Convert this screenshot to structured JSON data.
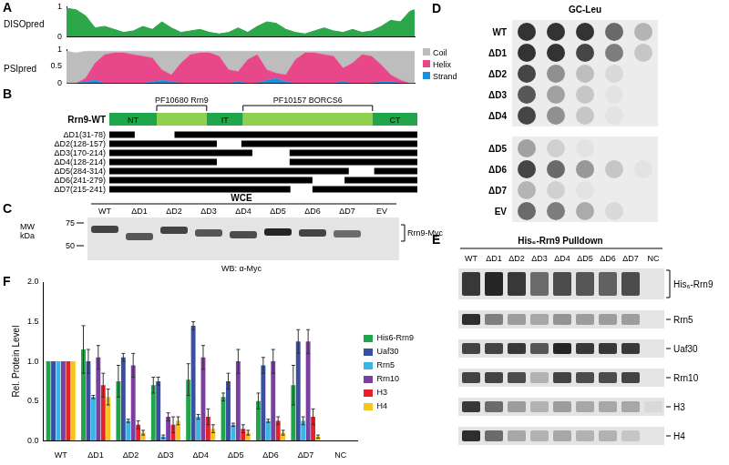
{
  "chart_data": [
    {
      "panel": "A",
      "type": "area",
      "y_label": "DISOpred",
      "x": [
        0,
        10,
        20,
        30,
        40,
        50,
        60,
        70,
        80,
        90,
        100,
        110,
        120,
        130,
        140,
        150,
        160,
        170,
        180,
        190,
        200,
        210,
        220,
        230,
        240,
        250,
        260,
        270,
        280,
        290,
        300,
        310,
        320,
        330,
        340,
        350,
        360,
        365
      ],
      "values": [
        0.95,
        0.9,
        0.7,
        0.3,
        0.35,
        0.25,
        0.15,
        0.2,
        0.35,
        0.25,
        0.5,
        0.3,
        0.15,
        0.2,
        0.25,
        0.15,
        0.1,
        0.15,
        0.3,
        0.15,
        0.35,
        0.5,
        0.45,
        0.25,
        0.15,
        0.1,
        0.2,
        0.3,
        0.2,
        0.15,
        0.25,
        0.15,
        0.2,
        0.35,
        0.55,
        0.5,
        0.85,
        0.9
      ],
      "color": "#2ca84a",
      "xlim": [
        0,
        365
      ],
      "ylim": [
        0,
        1
      ],
      "yticks": [
        0,
        1
      ],
      "tick_labels": "y",
      "grid": false
    },
    {
      "panel": "A",
      "type": "area",
      "y_label": "PSIpred",
      "stacked": true,
      "x": [
        0,
        10,
        20,
        30,
        40,
        50,
        60,
        70,
        80,
        90,
        100,
        110,
        120,
        130,
        140,
        150,
        160,
        170,
        180,
        190,
        200,
        210,
        220,
        230,
        240,
        250,
        260,
        270,
        280,
        290,
        300,
        310,
        320,
        330,
        340,
        350,
        360,
        365
      ],
      "series": [
        {
          "name": "Coil",
          "color": "#bdbdbd",
          "values": [
            0.95,
            0.9,
            0.8,
            0.35,
            0.1,
            0.05,
            0.05,
            0.1,
            0.15,
            0.2,
            0.55,
            0.7,
            0.35,
            0.1,
            0.05,
            0.05,
            0.15,
            0.55,
            0.6,
            0.25,
            0.1,
            0.55,
            0.65,
            0.7,
            0.25,
            0.05,
            0.05,
            0.1,
            0.15,
            0.5,
            0.35,
            0.1,
            0.15,
            0.4,
            0.7,
            0.85,
            0.95,
            0.95
          ]
        },
        {
          "name": "Helix",
          "color": "#e8478a",
          "values": [
            0,
            0,
            0.1,
            0.5,
            0.85,
            0.9,
            0.9,
            0.85,
            0.8,
            0.7,
            0.3,
            0.2,
            0.6,
            0.85,
            0.9,
            0.9,
            0.8,
            0.4,
            0.3,
            0.7,
            0.85,
            0.3,
            0.15,
            0.2,
            0.7,
            0.9,
            0.9,
            0.85,
            0.8,
            0.4,
            0.6,
            0.85,
            0.8,
            0.5,
            0.2,
            0.1,
            0,
            0
          ]
        },
        {
          "name": "Strand",
          "color": "#1e90d8",
          "values": [
            0,
            0,
            0.05,
            0.1,
            0,
            0,
            0,
            0,
            0,
            0.05,
            0.1,
            0.05,
            0,
            0,
            0,
            0,
            0,
            0,
            0.05,
            0,
            0,
            0.1,
            0.15,
            0.05,
            0,
            0,
            0,
            0,
            0,
            0.05,
            0,
            0,
            0,
            0.05,
            0.05,
            0,
            0,
            0
          ]
        }
      ],
      "xlim": [
        0,
        365
      ],
      "ylim": [
        0,
        1
      ],
      "yticks": [
        0,
        0.5,
        1
      ],
      "tick_labels": "y",
      "legend": "right",
      "grid": false
    },
    {
      "panel": "F",
      "type": "bar",
      "y_label": "Rel. Protein Level",
      "categories": [
        "WT",
        "ΔD1",
        "ΔD2",
        "ΔD3",
        "ΔD4",
        "ΔD5",
        "ΔD6",
        "ΔD7",
        "NC"
      ],
      "series": [
        {
          "name": "His6-Rrn9",
          "color": "#1fa64a",
          "values": [
            1,
            1.15,
            0.75,
            0.7,
            0.77,
            0.55,
            0.5,
            0.7,
            0
          ],
          "errors": [
            0,
            0.3,
            0.2,
            0.1,
            0.2,
            0.05,
            0.1,
            0.25,
            0
          ]
        },
        {
          "name": "Uaf30",
          "color": "#3a4fa0",
          "values": [
            1,
            1.0,
            1.05,
            0.75,
            1.45,
            0.75,
            0.95,
            1.25,
            0
          ],
          "errors": [
            0,
            0.15,
            0.05,
            0.05,
            0.05,
            0.1,
            0.1,
            0.15,
            0
          ]
        },
        {
          "name": "Rrn5",
          "color": "#39b5e8",
          "values": [
            1,
            0.55,
            0.25,
            0.05,
            0.3,
            0.2,
            0.25,
            0.25,
            0
          ],
          "errors": [
            0,
            0.02,
            0.02,
            0.02,
            0.03,
            0.02,
            0.02,
            0.05,
            0
          ]
        },
        {
          "name": "Rrn10",
          "color": "#7b3fa0",
          "values": [
            1,
            1.05,
            0.95,
            0.3,
            1.05,
            1.0,
            1.0,
            1.25,
            0
          ],
          "errors": [
            0,
            0.15,
            0.15,
            0.05,
            0.15,
            0.15,
            0.15,
            0.15,
            0
          ]
        },
        {
          "name": "H3",
          "color": "#e8202a",
          "values": [
            1,
            0.7,
            0.2,
            0.2,
            0.3,
            0.15,
            0.25,
            0.3,
            0
          ],
          "errors": [
            0,
            0.15,
            0.05,
            0.1,
            0.1,
            0.05,
            0.05,
            0.1,
            0
          ]
        },
        {
          "name": "H4",
          "color": "#f5c518",
          "values": [
            1,
            0.55,
            0.1,
            0.25,
            0.15,
            0.1,
            0.1,
            0.05,
            0
          ],
          "errors": [
            0,
            0.1,
            0.03,
            0.05,
            0.05,
            0.03,
            0.03,
            0.02,
            0
          ]
        }
      ],
      "ylim": [
        0,
        2
      ],
      "yticks": [
        {
          "value": 0,
          "label": "0.0"
        },
        0.5,
        {
          "value": 1,
          "label": "1.0"
        },
        1.5,
        {
          "value": 2,
          "label": "2.0"
        }
      ],
      "legend": "right",
      "grid": false
    }
  ],
  "domain_map": {
    "panel": "B",
    "protein": "Rrn9-WT",
    "residue_range": [
      1,
      365
    ],
    "segments": [
      {
        "label": "NT",
        "start": 1,
        "end": 57
      },
      {
        "domain": "PF10680 Rrn9",
        "start": 57,
        "end": 116
      },
      {
        "label": "IT",
        "start": 116,
        "end": 159
      },
      {
        "domain": "PF10157 BORCS6",
        "start": 159,
        "end": 312
      },
      {
        "label": "CT",
        "start": 312,
        "end": 365
      }
    ],
    "deletions": [
      {
        "label": "ΔD1(31-78)",
        "start": 31,
        "end": 78
      },
      {
        "label": "ΔD2(128-157)",
        "start": 128,
        "end": 157
      },
      {
        "label": "ΔD3(170-214)",
        "start": 170,
        "end": 214
      },
      {
        "label": "ΔD4(128-214)",
        "start": 128,
        "end": 214
      },
      {
        "label": "ΔD5(284-314)",
        "start": 284,
        "end": 314
      },
      {
        "label": "ΔD6(241-279)",
        "start": 241,
        "end": 279
      },
      {
        "label": "ΔD7(215-241)",
        "start": 215,
        "end": 241
      }
    ]
  },
  "western_blot": {
    "panel": "C",
    "title": "WCE",
    "lanes": [
      "WT",
      "ΔD1",
      "ΔD2",
      "ΔD3",
      "ΔD4",
      "ΔD5",
      "ΔD6",
      "ΔD7",
      "EV"
    ],
    "mw_label": [
      "MW",
      "kDa"
    ],
    "mw_markers": [
      75,
      50
    ],
    "band_mw": [
      68,
      60,
      67,
      64,
      62,
      65,
      64,
      63,
      null
    ],
    "band_intensity": [
      0.8,
      0.7,
      0.8,
      0.7,
      0.75,
      0.95,
      0.8,
      0.6,
      0
    ],
    "band_label": "Rrn9-Myc",
    "antibody": "WB: α-Myc"
  },
  "spot_assay": {
    "panel": "D",
    "title": "GC-Leu",
    "plates": [
      [
        {
          "label": "WT",
          "growth": [
            1,
            1,
            1,
            0.7,
            0.3
          ]
        },
        {
          "label": "ΔD1",
          "growth": [
            1,
            1,
            0.9,
            0.6,
            0.2
          ]
        },
        {
          "label": "ΔD2",
          "growth": [
            0.9,
            0.5,
            0.25,
            0.1,
            0
          ]
        },
        {
          "label": "ΔD3",
          "growth": [
            0.8,
            0.4,
            0.2,
            0.05,
            0
          ]
        },
        {
          "label": "ΔD4",
          "growth": [
            0.9,
            0.5,
            0.2,
            0.05,
            0
          ]
        }
      ],
      [
        {
          "label": "ΔD5",
          "growth": [
            0.4,
            0.15,
            0.05,
            0,
            0
          ]
        },
        {
          "label": "ΔD6",
          "growth": [
            0.9,
            0.7,
            0.45,
            0.2,
            0.05
          ]
        },
        {
          "label": "ΔD7",
          "growth": [
            0.3,
            0.15,
            0.05,
            0,
            0
          ]
        },
        {
          "label": "EV",
          "growth": [
            0.7,
            0.6,
            0.35,
            0.1,
            0
          ]
        }
      ]
    ]
  },
  "pulldown": {
    "panel": "E",
    "title": "His₆-Rrn9 Pulldown",
    "lanes": [
      "WT",
      "ΔD1",
      "ΔD2",
      "ΔD3",
      "ΔD4",
      "ΔD5",
      "ΔD6",
      "ΔD7",
      "NC"
    ],
    "rows": [
      {
        "label": "His₆-Rrn9",
        "intensity": [
          0.85,
          0.95,
          0.85,
          0.6,
          0.75,
          0.7,
          0.65,
          0.75,
          0
        ]
      },
      {
        "label": "Rrn5",
        "intensity": [
          0.9,
          0.5,
          0.35,
          0.3,
          0.4,
          0.35,
          0.35,
          0.35,
          0
        ]
      },
      {
        "label": "Uaf30",
        "intensity": [
          0.8,
          0.8,
          0.85,
          0.7,
          0.95,
          0.85,
          0.85,
          0.85,
          0
        ]
      },
      {
        "label": "Rrn10",
        "intensity": [
          0.8,
          0.8,
          0.75,
          0.25,
          0.8,
          0.75,
          0.75,
          0.8,
          0
        ]
      },
      {
        "label": "H3",
        "intensity": [
          0.85,
          0.6,
          0.35,
          0.25,
          0.35,
          0.3,
          0.3,
          0.3,
          0.05
        ]
      },
      {
        "label": "H4",
        "intensity": [
          0.9,
          0.6,
          0.3,
          0.25,
          0.3,
          0.25,
          0.25,
          0.15,
          0
        ]
      }
    ]
  }
}
